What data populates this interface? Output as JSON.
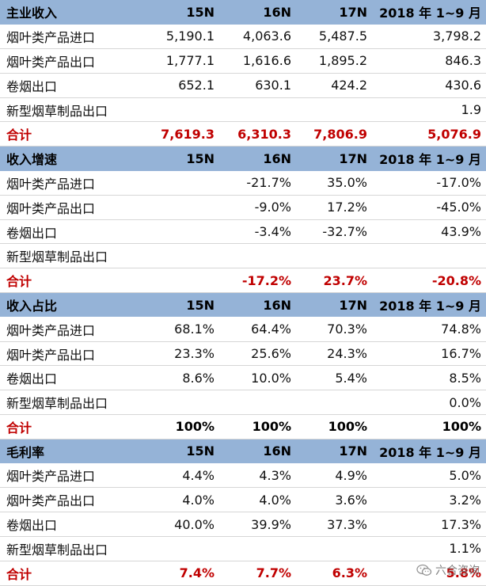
{
  "sections": [
    {
      "header": [
        "主业收入",
        "15N",
        "16N",
        "17N",
        "2018 年 1~9 月"
      ],
      "rows": [
        [
          "烟叶类产品进口",
          "5,190.1",
          "4,063.6",
          "5,487.5",
          "3,798.2"
        ],
        [
          "烟叶类产品出口",
          "1,777.1",
          "1,616.6",
          "1,895.2",
          "846.3"
        ],
        [
          "卷烟出口",
          "652.1",
          "630.1",
          "424.2",
          "430.6"
        ],
        [
          "新型烟草制品出口",
          "",
          "",
          "",
          "1.9"
        ]
      ],
      "total": [
        "合计",
        "7,619.3",
        "6,310.3",
        "7,806.9",
        "5,076.9"
      ]
    },
    {
      "header": [
        "收入增速",
        "15N",
        "16N",
        "17N",
        "2018 年 1~9 月"
      ],
      "rows": [
        [
          "烟叶类产品进口",
          "",
          "-21.7%",
          "35.0%",
          "-17.0%"
        ],
        [
          "烟叶类产品出口",
          "",
          "-9.0%",
          "17.2%",
          "-45.0%"
        ],
        [
          "卷烟出口",
          "",
          "-3.4%",
          "-32.7%",
          "43.9%"
        ],
        [
          "新型烟草制品出口",
          "",
          "",
          "",
          ""
        ]
      ],
      "total": [
        "合计",
        "",
        "-17.2%",
        "23.7%",
        "-20.8%"
      ]
    },
    {
      "header": [
        "收入占比",
        "15N",
        "16N",
        "17N",
        "2018 年 1~9 月"
      ],
      "rows": [
        [
          "烟叶类产品进口",
          "68.1%",
          "64.4%",
          "70.3%",
          "74.8%"
        ],
        [
          "烟叶类产品出口",
          "23.3%",
          "25.6%",
          "24.3%",
          "16.7%"
        ],
        [
          "卷烟出口",
          "8.6%",
          "10.0%",
          "5.4%",
          "8.5%"
        ],
        [
          "新型烟草制品出口",
          "",
          "",
          "",
          "0.0%"
        ]
      ],
      "total": [
        "合计",
        "100%",
        "100%",
        "100%",
        "100%"
      ]
    },
    {
      "header": [
        "毛利率",
        "15N",
        "16N",
        "17N",
        "2018 年 1~9 月"
      ],
      "rows": [
        [
          "烟叶类产品进口",
          "4.4%",
          "4.3%",
          "4.9%",
          "5.0%"
        ],
        [
          "烟叶类产品出口",
          "4.0%",
          "4.0%",
          "3.6%",
          "3.2%"
        ],
        [
          "卷烟出口",
          "40.0%",
          "39.9%",
          "37.3%",
          "17.3%"
        ],
        [
          "新型烟草制品出口",
          "",
          "",
          "",
          "1.1%"
        ]
      ],
      "total": [
        "合计",
        "7.4%",
        "7.7%",
        "6.3%",
        "5.8%"
      ]
    }
  ],
  "watermark": {
    "text": "六合咨询",
    "icon": "wechat-icon"
  }
}
